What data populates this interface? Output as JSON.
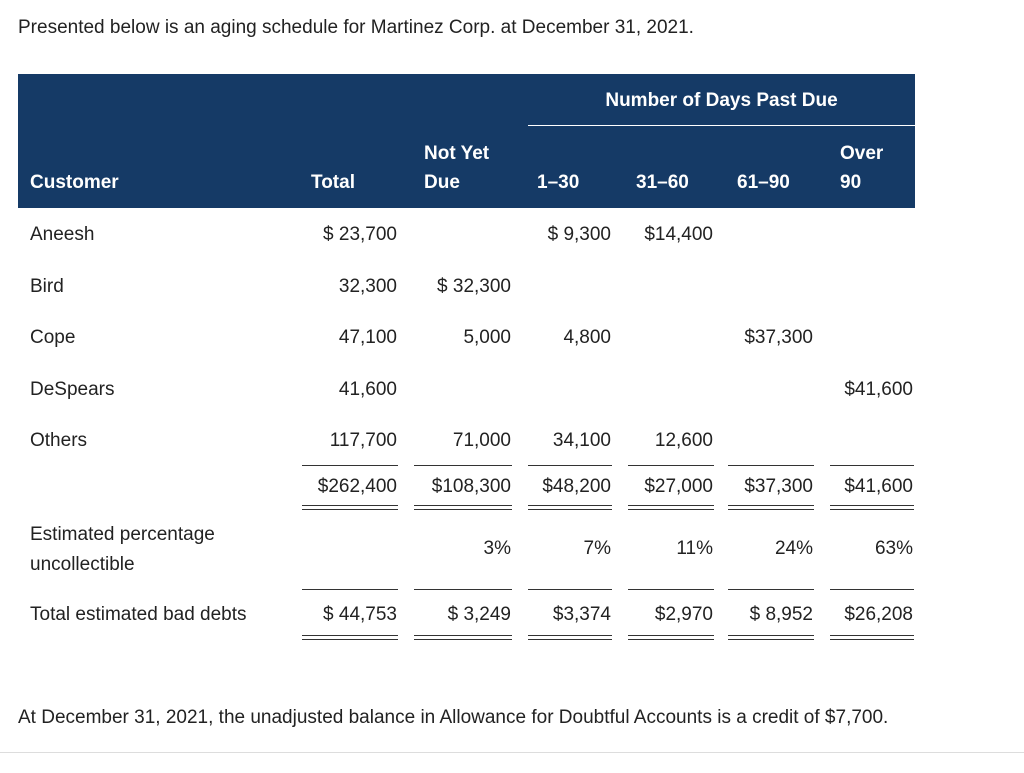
{
  "intro": "Presented below is an aging schedule for Martinez Corp. at December 31, 2021.",
  "table": {
    "group_header": "Number of Days Past Due",
    "columns": [
      "Customer",
      "Total",
      "Not Yet Due",
      "1–30",
      "31–60",
      "61–90",
      "Over 90"
    ],
    "rows": [
      [
        "Aneesh",
        "$ 23,700",
        null,
        "$ 9,300",
        "$14,400",
        null,
        null
      ],
      [
        "Bird",
        "32,300",
        "$ 32,300",
        null,
        null,
        null,
        null
      ],
      [
        "Cope",
        "47,100",
        "5,000",
        "4,800",
        null,
        "$37,300",
        null
      ],
      [
        "DeSpears",
        "41,600",
        null,
        null,
        null,
        null,
        "$41,600"
      ],
      [
        "Others",
        "117,700",
        "71,000",
        "34,100",
        "12,600",
        null,
        null
      ]
    ],
    "totals": [
      null,
      "$262,400",
      "$108,300",
      "$48,200",
      "$27,000",
      "$37,300",
      "$41,600"
    ],
    "percentages": [
      "Estimated percentage uncollectible",
      null,
      "3%",
      "7%",
      "11%",
      "24%",
      "63%"
    ],
    "bad_debts": [
      "Total estimated bad debts",
      "$ 44,753",
      "$ 3,249",
      "$3,374",
      "$2,970",
      "$ 8,952",
      "$26,208"
    ]
  },
  "footer": "At December 31, 2021, the unadjusted balance in Allowance for Doubtful Accounts is a credit of $7,700."
}
